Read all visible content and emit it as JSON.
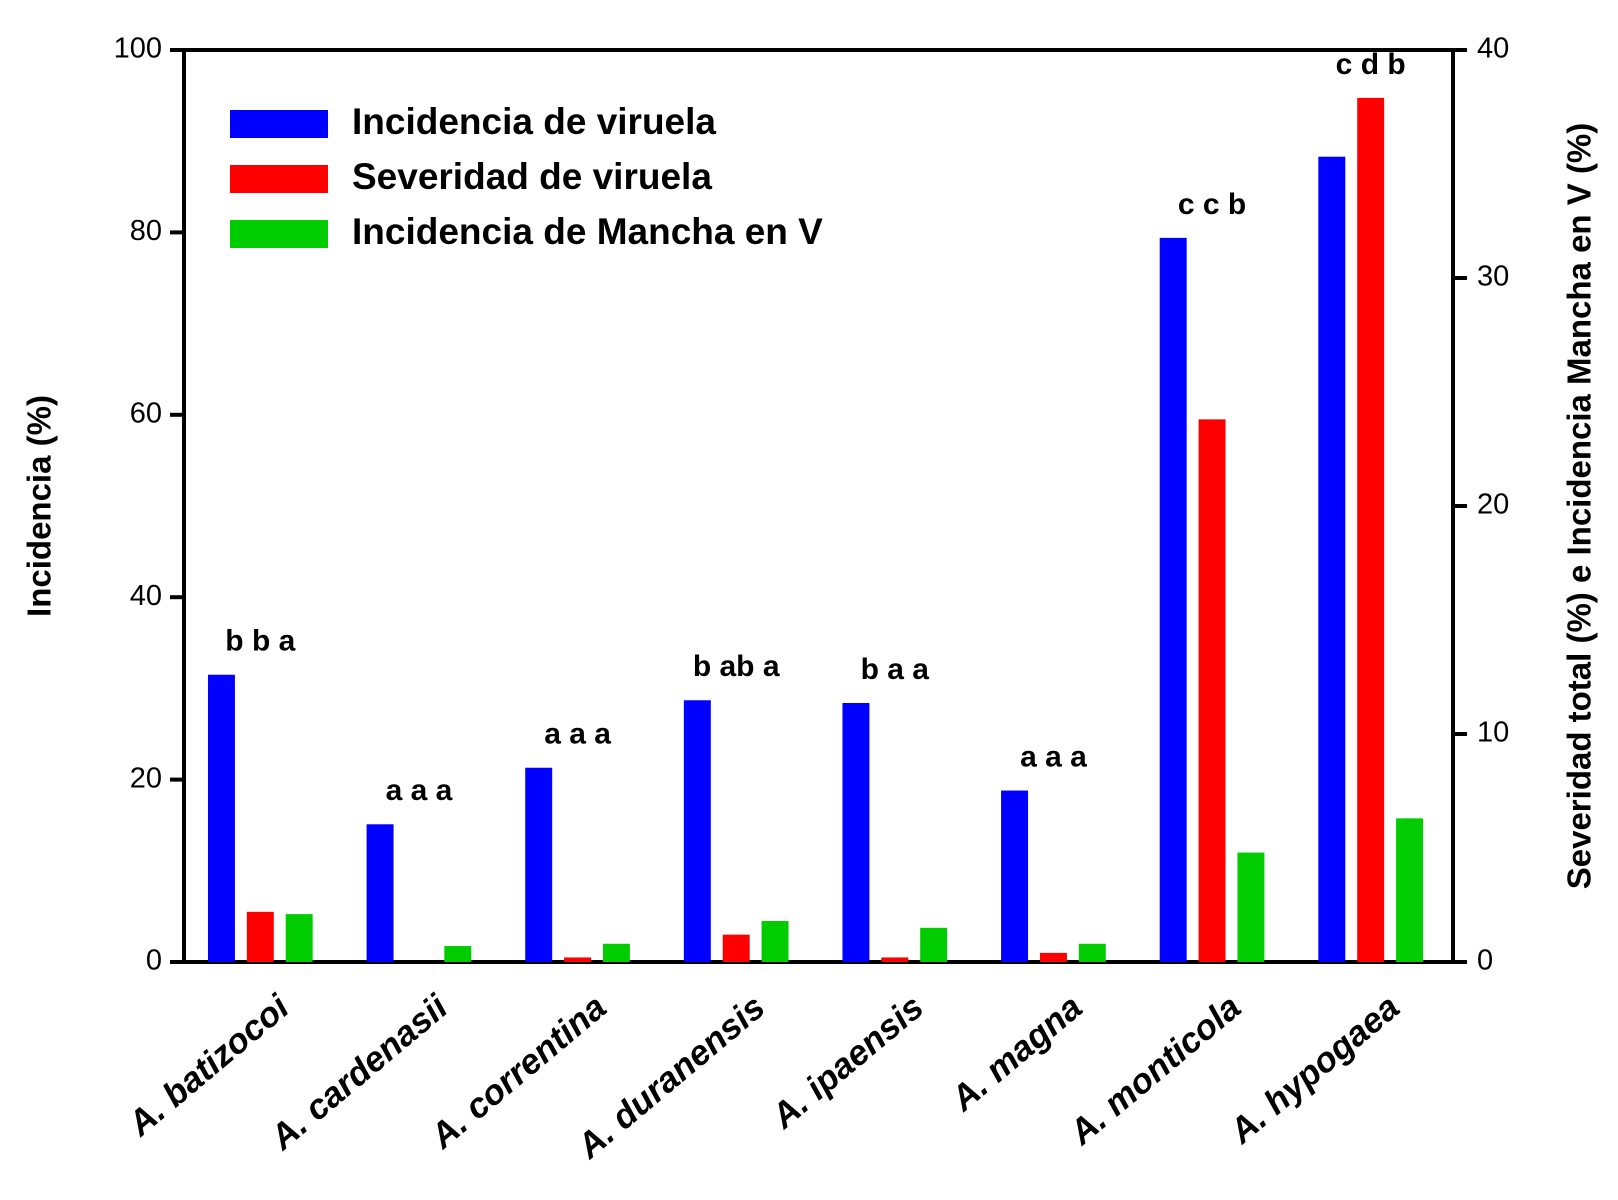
{
  "chart_data": {
    "type": "bar",
    "categories": [
      "A. batizocoi",
      "A. cardenasii",
      "A. correntina",
      "A. duranensis",
      "A. ipaensis",
      "A. magna",
      "A. monticola",
      "A. hypogaea"
    ],
    "series": [
      {
        "name": "Incidencia de viruela",
        "color": "#0000ff",
        "values": [
          31.5,
          15.1,
          21.3,
          28.7,
          28.4,
          18.8,
          79.4,
          88.3
        ]
      },
      {
        "name": "Severidad de viruela",
        "color": "#ff0000",
        "axis": "y2",
        "values": [
          2.2,
          0,
          0.2,
          1.2,
          0.2,
          0.4,
          23.8,
          37.9
        ]
      },
      {
        "name": "Incidencia de Mancha en V",
        "color": "#00cc00",
        "axis": "y2",
        "values": [
          2.1,
          0.7,
          0.8,
          1.8,
          1.5,
          0.8,
          4.8,
          6.3
        ]
      }
    ],
    "annotations": [
      "b b a",
      "a a a",
      "a a a",
      "b ab a",
      "b a a",
      "a a a",
      "c c b",
      "c  d  b"
    ],
    "ylabel": "Incidencia (%)",
    "y2label": "Severidad total (%) e Incidencia Mancha en V (%)",
    "ylim": [
      0,
      100
    ],
    "yticks": [
      0,
      20,
      40,
      60,
      80,
      100
    ],
    "y2lim": [
      0,
      40
    ],
    "y2ticks": [
      0,
      10,
      20,
      30,
      40
    ],
    "legend": "upper left",
    "grid": false
  }
}
